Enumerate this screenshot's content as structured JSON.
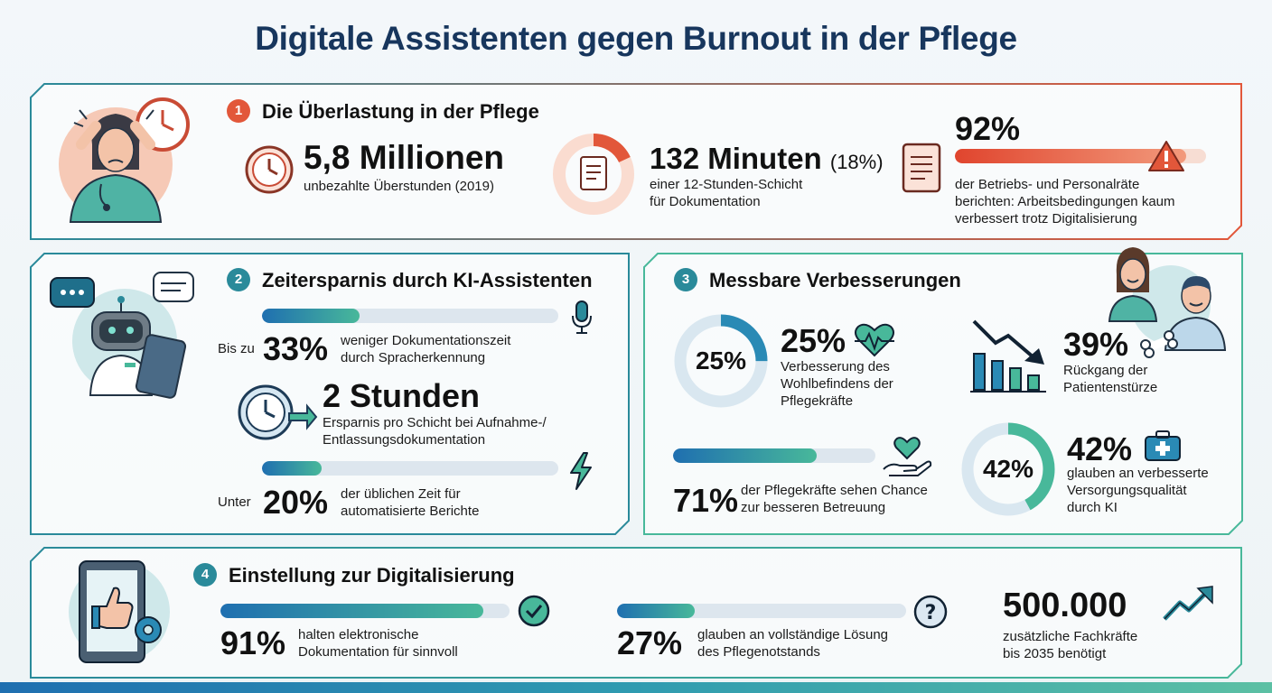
{
  "title": "Digitale Assistenten gegen Burnout in der Pflege",
  "colors": {
    "teal": "#2a8a9a",
    "orange": "#e2573a",
    "blue": "#1f6fb0",
    "green": "#48b89a"
  },
  "section1": {
    "number": "1",
    "heading": "Die Überlastung in der Pflege",
    "stat1": {
      "value": "5,8 Millionen",
      "label": "unbezahlte Überstunden (2019)"
    },
    "stat2": {
      "value": "132 Minuten",
      "pct": "(18%)",
      "label_line1": "einer 12-Stunden-Schicht",
      "label_line2": "für Dokumentation",
      "ring_fraction": 0.18
    },
    "stat3": {
      "value": "92%",
      "bar_fraction": 0.92,
      "label_line1": "der Betriebs- und Personalräte",
      "label_line2": "berichten: Arbeitsbedingungen kaum",
      "label_line3": "verbessert trotz Digitalisierung"
    }
  },
  "section2": {
    "number": "2",
    "heading": "Zeitersparnis durch KI-Assistenten",
    "stat1": {
      "prefix": "Bis zu",
      "value": "33%",
      "label_line1": "weniger Dokumentationszeit",
      "label_line2": "durch Spracherkennung",
      "bar_fraction": 0.33
    },
    "stat2": {
      "value": "2 Stunden",
      "label_line1": "Ersparnis pro Schicht bei Aufnahme-/",
      "label_line2": "Entlassungsdokumentation"
    },
    "stat3": {
      "prefix": "Unter",
      "value": "20%",
      "label_line1": "der üblichen Zeit für",
      "label_line2": "automatisierte Berichte",
      "bar_fraction": 0.2
    }
  },
  "section3": {
    "number": "3",
    "heading": "Messbare Verbesserungen",
    "stat1": {
      "ring_label": "25%",
      "value": "25%",
      "label_line1": "Verbesserung des",
      "label_line2": "Wohlbefindens der",
      "label_line3": "Pflegekräfte",
      "ring_fraction": 0.25
    },
    "stat2": {
      "value": "39%",
      "label_line1": "Rückgang der",
      "label_line2": "Patientenstürze"
    },
    "stat3": {
      "value": "71%",
      "label_line1": "der Pflegekräfte sehen Chance",
      "label_line2": "zur besseren Betreuung",
      "bar_fraction": 0.71
    },
    "stat4": {
      "ring_label": "42%",
      "value": "42%",
      "label_line1": "glauben an verbesserte",
      "label_line2": "Versorgungsqualität",
      "label_line3": "durch KI",
      "ring_fraction": 0.42
    }
  },
  "section4": {
    "number": "4",
    "heading": "Einstellung zur Digitalisierung",
    "stat1": {
      "value": "91%",
      "label_line1": "halten elektronische",
      "label_line2": "Dokumentation für sinnvoll",
      "bar_fraction": 0.91
    },
    "stat2": {
      "value": "27%",
      "label_line1": "glauben an vollständige Lösung",
      "label_line2": "des Pflegenotstands",
      "bar_fraction": 0.27
    },
    "stat3": {
      "value": "500.000",
      "label_line1": "zusätzliche Fachkräfte",
      "label_line2": "bis 2035 benötigt"
    }
  }
}
